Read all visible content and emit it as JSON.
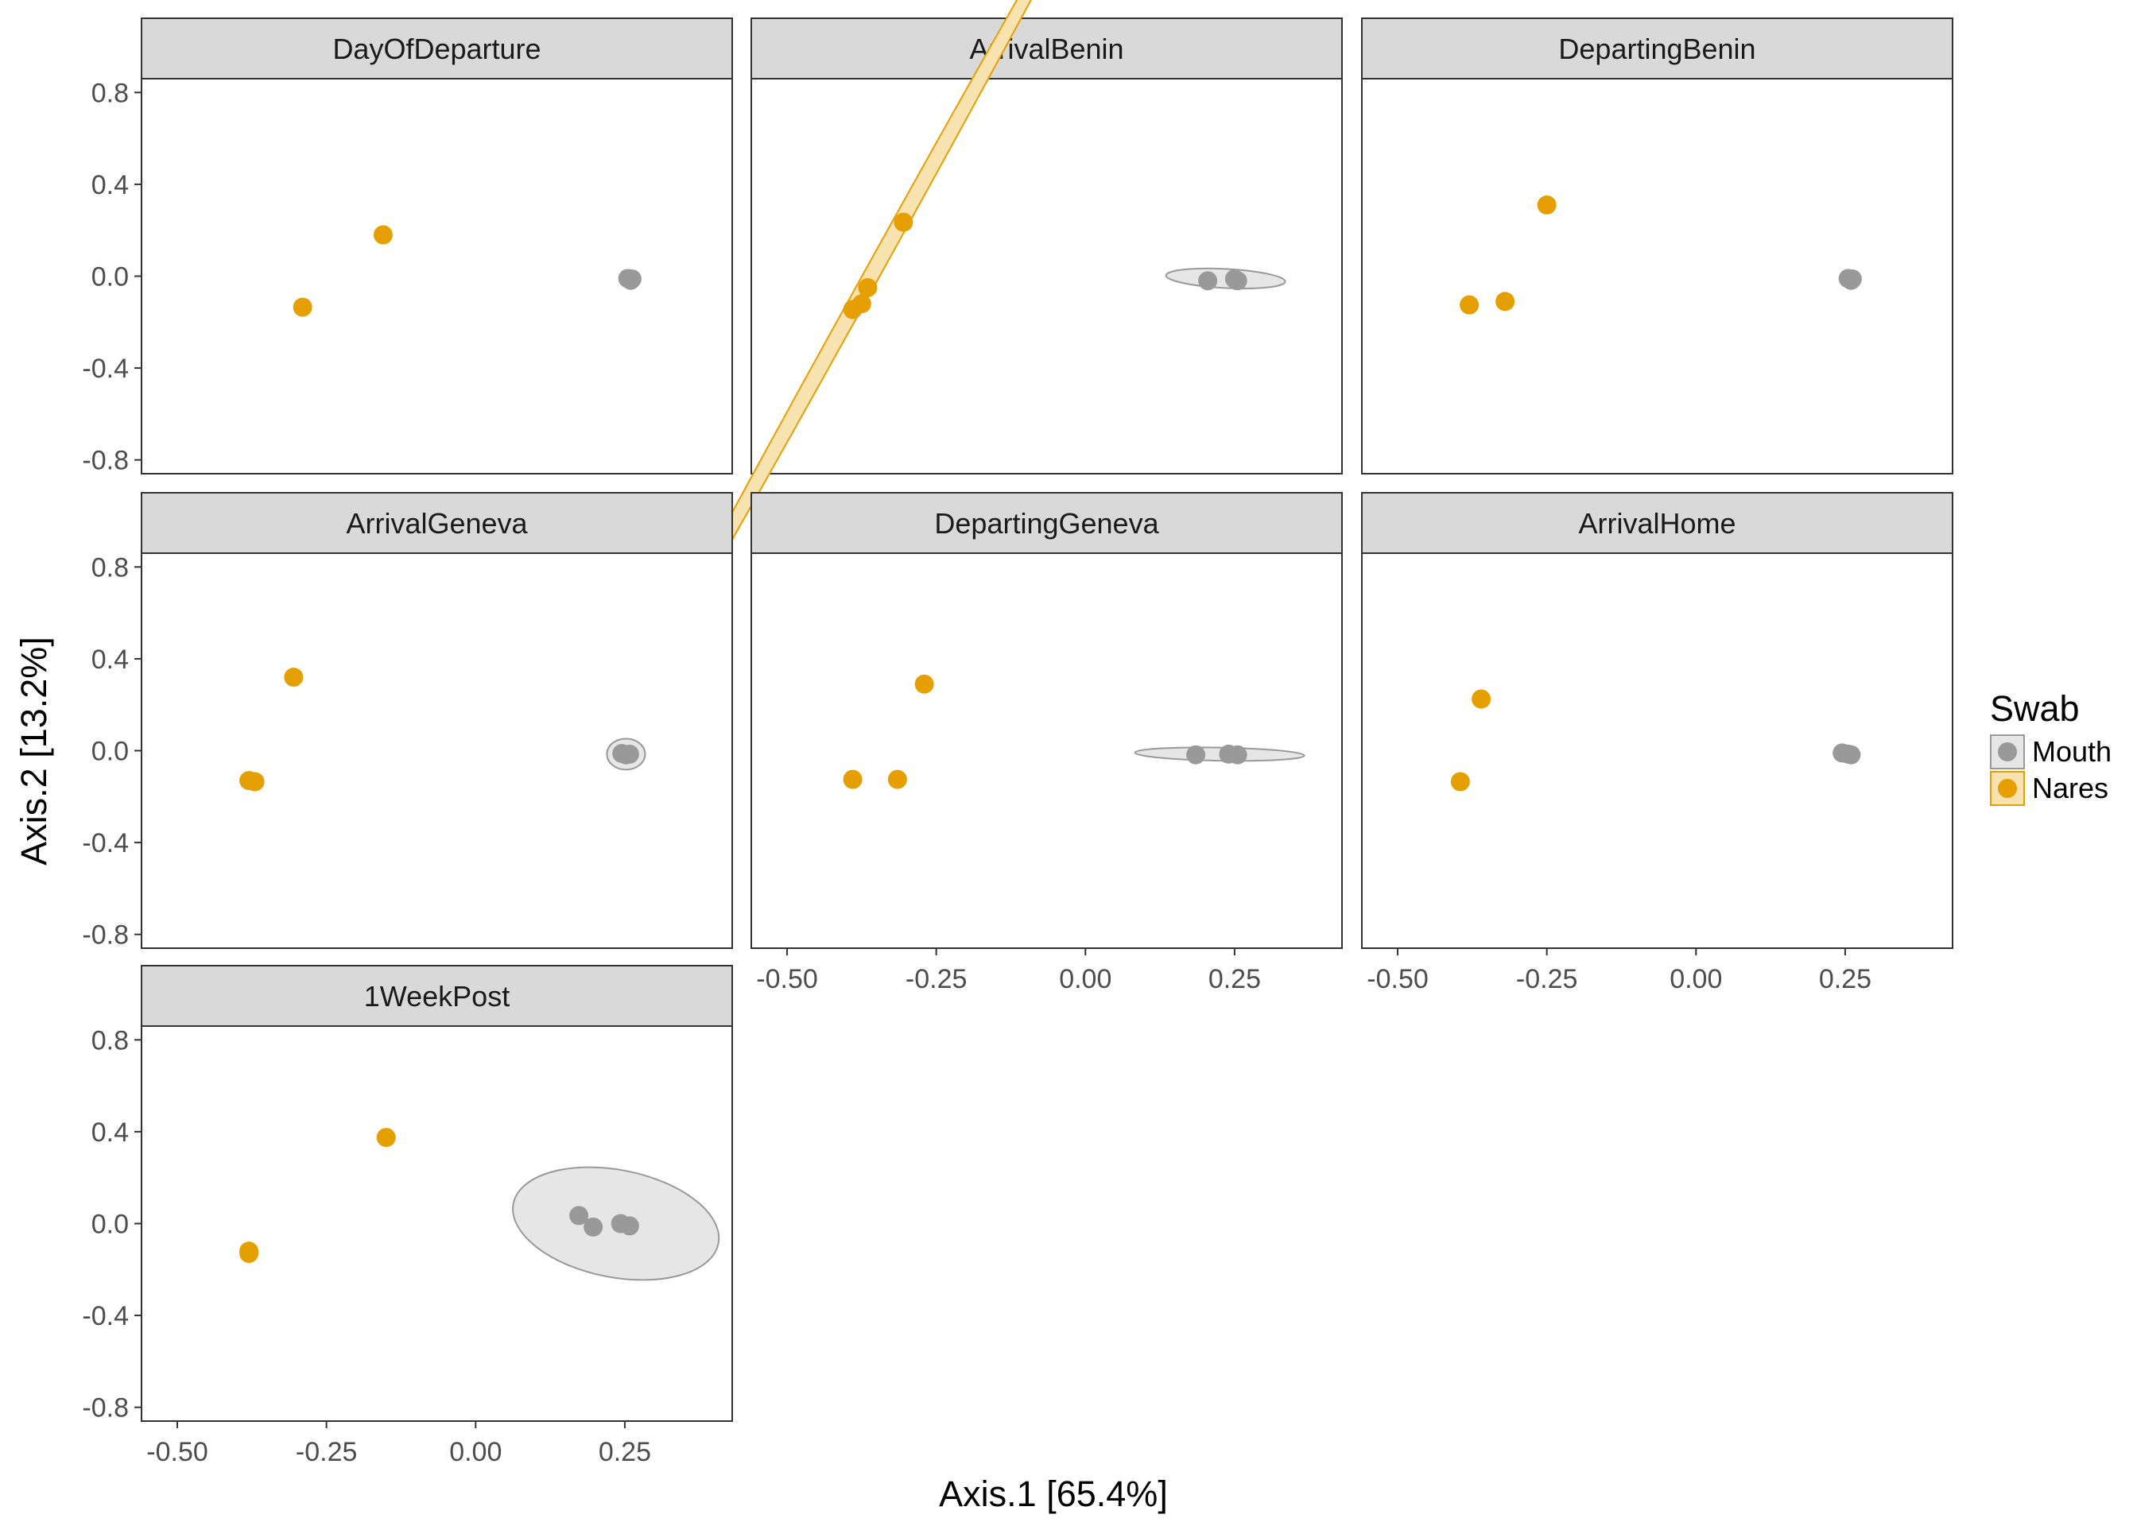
{
  "chart_data": {
    "type": "scatter",
    "xlabel": "Axis.1   [65.4%]",
    "ylabel": "Axis.2   [13.2%]",
    "xlim": [
      -0.56,
      0.43
    ],
    "ylim": [
      -0.86,
      0.86
    ],
    "x_ticks": [
      -0.5,
      -0.25,
      0.0,
      0.25
    ],
    "x_tick_labels": [
      "-0.50",
      "-0.25",
      "0.00",
      "0.25"
    ],
    "y_ticks": [
      0.8,
      0.4,
      0.0,
      -0.4,
      -0.8
    ],
    "y_tick_labels": [
      "0.8",
      "0.4",
      "0.0",
      "-0.4",
      "-0.8"
    ],
    "grid": false,
    "legend": {
      "title": "Swab",
      "position": "right",
      "entries": [
        {
          "label": "Mouth",
          "color": "#999999",
          "fill": "#e6e6e6"
        },
        {
          "label": "Nares",
          "color": "#E69F00",
          "fill": "#f8e2b0"
        }
      ]
    },
    "colors": {
      "Mouth": "#999999",
      "Nares": "#E69F00",
      "strip": "#d9d9d9"
    },
    "panels": [
      {
        "title": "DayOfDeparture",
        "points": [
          {
            "group": "Nares",
            "x": -0.155,
            "y": 0.18
          },
          {
            "group": "Nares",
            "x": -0.29,
            "y": -0.135
          },
          {
            "group": "Mouth",
            "x": 0.255,
            "y": -0.01
          },
          {
            "group": "Mouth",
            "x": 0.26,
            "y": -0.018
          },
          {
            "group": "Mouth",
            "x": 0.262,
            "y": -0.012
          }
        ],
        "ellipses": []
      },
      {
        "title": "ArrivalBenin",
        "points": [
          {
            "group": "Nares",
            "x": -0.305,
            "y": 0.235
          },
          {
            "group": "Nares",
            "x": -0.365,
            "y": -0.05
          },
          {
            "group": "Nares",
            "x": -0.375,
            "y": -0.12
          },
          {
            "group": "Nares",
            "x": -0.39,
            "y": -0.145
          },
          {
            "group": "Mouth",
            "x": 0.205,
            "y": -0.02
          },
          {
            "group": "Mouth",
            "x": 0.25,
            "y": -0.012
          },
          {
            "group": "Mouth",
            "x": 0.255,
            "y": -0.02
          }
        ],
        "ellipses": [
          {
            "group": "Nares",
            "cx": -0.365,
            "cy": -0.025,
            "rx": 0.895,
            "ry": 0.013,
            "angle": 61
          },
          {
            "group": "Mouth",
            "cx": 0.235,
            "cy": -0.01,
            "rx": 0.1,
            "ry": 0.016,
            "angle": -3
          }
        ]
      },
      {
        "title": "DepartingBenin",
        "points": [
          {
            "group": "Nares",
            "x": -0.25,
            "y": 0.31
          },
          {
            "group": "Nares",
            "x": -0.38,
            "y": -0.125
          },
          {
            "group": "Nares",
            "x": -0.32,
            "y": -0.11
          },
          {
            "group": "Mouth",
            "x": 0.255,
            "y": -0.01
          },
          {
            "group": "Mouth",
            "x": 0.26,
            "y": -0.018
          },
          {
            "group": "Mouth",
            "x": 0.262,
            "y": -0.012
          }
        ],
        "ellipses": []
      },
      {
        "title": "ArrivalGeneva",
        "points": [
          {
            "group": "Nares",
            "x": -0.305,
            "y": 0.32
          },
          {
            "group": "Nares",
            "x": -0.38,
            "y": -0.13
          },
          {
            "group": "Nares",
            "x": -0.37,
            "y": -0.135
          },
          {
            "group": "Mouth",
            "x": 0.245,
            "y": -0.012
          },
          {
            "group": "Mouth",
            "x": 0.252,
            "y": -0.018
          },
          {
            "group": "Mouth",
            "x": 0.258,
            "y": -0.015
          }
        ],
        "ellipses": [
          {
            "group": "Mouth",
            "cx": 0.252,
            "cy": -0.015,
            "rx": 0.032,
            "ry": 0.026,
            "angle": 0
          }
        ]
      },
      {
        "title": "DepartingGeneva",
        "points": [
          {
            "group": "Nares",
            "x": -0.27,
            "y": 0.29
          },
          {
            "group": "Nares",
            "x": -0.39,
            "y": -0.125
          },
          {
            "group": "Nares",
            "x": -0.315,
            "y": -0.125
          },
          {
            "group": "Mouth",
            "x": 0.185,
            "y": -0.018
          },
          {
            "group": "Mouth",
            "x": 0.24,
            "y": -0.015
          },
          {
            "group": "Mouth",
            "x": 0.255,
            "y": -0.018
          }
        ],
        "ellipses": [
          {
            "group": "Mouth",
            "cx": 0.225,
            "cy": -0.015,
            "rx": 0.142,
            "ry": 0.011,
            "angle": -1
          }
        ]
      },
      {
        "title": "ArrivalHome",
        "points": [
          {
            "group": "Nares",
            "x": -0.36,
            "y": 0.225
          },
          {
            "group": "Nares",
            "x": -0.395,
            "y": -0.135
          },
          {
            "group": "Mouth",
            "x": 0.245,
            "y": -0.01
          },
          {
            "group": "Mouth",
            "x": 0.255,
            "y": -0.015
          },
          {
            "group": "Mouth",
            "x": 0.26,
            "y": -0.018
          }
        ],
        "ellipses": []
      },
      {
        "title": "1WeekPost",
        "points": [
          {
            "group": "Nares",
            "x": -0.15,
            "y": 0.375
          },
          {
            "group": "Nares",
            "x": -0.38,
            "y": -0.12
          },
          {
            "group": "Nares",
            "x": -0.38,
            "y": -0.13
          },
          {
            "group": "Mouth",
            "x": 0.173,
            "y": 0.035
          },
          {
            "group": "Mouth",
            "x": 0.197,
            "y": -0.015
          },
          {
            "group": "Mouth",
            "x": 0.243,
            "y": 0.0
          },
          {
            "group": "Mouth",
            "x": 0.258,
            "y": -0.01
          }
        ],
        "ellipses": [
          {
            "group": "Mouth",
            "cx": 0.235,
            "cy": 0.0,
            "rx": 0.175,
            "ry": 0.09,
            "angle": -11
          }
        ]
      }
    ]
  }
}
